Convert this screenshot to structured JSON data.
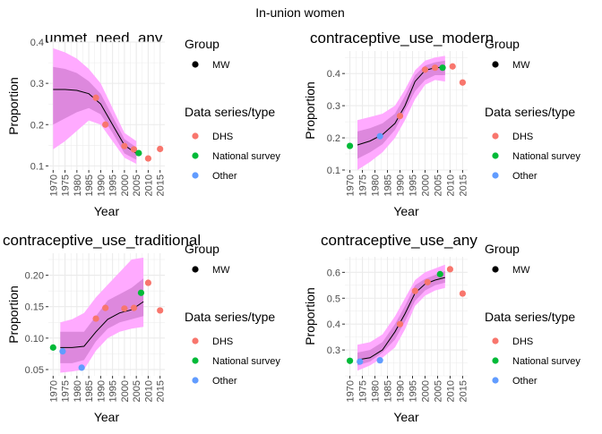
{
  "page_title": "In-union women",
  "colors": {
    "panel_bg": "#ffffff",
    "grid": "#ebebeb",
    "outer_band": "#ffaaff",
    "inner_band": "#dd88dd",
    "median_line": "#000000",
    "dhs": "#f8766d",
    "national_survey": "#00ba38",
    "other": "#619cff",
    "group_mw": "#000000"
  },
  "chart_data": [
    {
      "type": "line",
      "title": "unmet_need_any",
      "xlabel": "Year",
      "ylabel": "Proportion",
      "xlim": [
        1968,
        2017
      ],
      "ylim": [
        0.09,
        0.4
      ],
      "x_ticks": [
        1970,
        1975,
        1980,
        1985,
        1990,
        1995,
        2000,
        2005,
        2010,
        2015
      ],
      "y_ticks": [
        0.1,
        0.2,
        0.3,
        0.4
      ],
      "y_tick_labels": [
        "0.1",
        "0.2",
        "0.3",
        "0.4"
      ],
      "grid": true,
      "legend": {
        "group_title": "Group",
        "group_items": [
          "MW"
        ],
        "series_title": "Data series/type",
        "series_items": [
          "DHS",
          "National survey",
          "Other"
        ]
      },
      "band": {
        "x": [
          1970,
          1975,
          1980,
          1985,
          1990,
          1995,
          2000,
          2005
        ],
        "lower95": [
          0.14,
          0.16,
          0.185,
          0.21,
          0.2,
          0.16,
          0.12,
          0.105
        ],
        "lower80": [
          0.2,
          0.215,
          0.23,
          0.24,
          0.225,
          0.18,
          0.13,
          0.115
        ],
        "median": [
          0.285,
          0.285,
          0.283,
          0.275,
          0.25,
          0.2,
          0.15,
          0.13
        ],
        "upper80": [
          0.34,
          0.335,
          0.325,
          0.305,
          0.275,
          0.22,
          0.165,
          0.145
        ],
        "upper95": [
          0.385,
          0.375,
          0.36,
          0.335,
          0.3,
          0.24,
          0.18,
          0.16
        ]
      },
      "points": [
        {
          "series": "DHS",
          "x": 1988,
          "y": 0.265
        },
        {
          "series": "DHS",
          "x": 1992,
          "y": 0.2
        },
        {
          "series": "DHS",
          "x": 2000,
          "y": 0.148
        },
        {
          "series": "DHS",
          "x": 2004,
          "y": 0.14
        },
        {
          "series": "National survey",
          "x": 2006,
          "y": 0.131
        },
        {
          "series": "DHS",
          "x": 2010,
          "y": 0.118
        },
        {
          "series": "DHS",
          "x": 2015,
          "y": 0.141
        }
      ]
    },
    {
      "type": "line",
      "title": "contraceptive_use_modern",
      "xlabel": "Year",
      "ylabel": "Proportion",
      "xlim": [
        1968,
        2017
      ],
      "ylim": [
        0.1,
        0.47
      ],
      "x_ticks": [
        1970,
        1975,
        1980,
        1985,
        1990,
        1995,
        2000,
        2005,
        2010,
        2015
      ],
      "y_ticks": [
        0.1,
        0.2,
        0.3,
        0.4
      ],
      "y_tick_labels": [
        "0.1",
        "0.2",
        "0.3",
        "0.4"
      ],
      "grid": true,
      "legend": {
        "group_title": "Group",
        "group_items": [
          "MW"
        ],
        "series_title": "Data series/type",
        "series_items": [
          "DHS",
          "National survey",
          "Other"
        ]
      },
      "band": {
        "x": [
          1973,
          1978,
          1983,
          1988,
          1992,
          1996,
          2000,
          2004,
          2008
        ],
        "lower95": [
          0.1,
          0.125,
          0.155,
          0.2,
          0.255,
          0.32,
          0.365,
          0.38,
          0.375
        ],
        "lower80": [
          0.135,
          0.155,
          0.18,
          0.225,
          0.285,
          0.345,
          0.38,
          0.395,
          0.395
        ],
        "median": [
          0.178,
          0.19,
          0.21,
          0.245,
          0.3,
          0.375,
          0.41,
          0.418,
          0.42
        ],
        "upper80": [
          0.22,
          0.23,
          0.245,
          0.275,
          0.33,
          0.395,
          0.425,
          0.435,
          0.44
        ],
        "upper95": [
          0.255,
          0.265,
          0.275,
          0.3,
          0.35,
          0.41,
          0.44,
          0.45,
          0.455
        ]
      },
      "points": [
        {
          "series": "National survey",
          "x": 1970,
          "y": 0.175
        },
        {
          "series": "Other",
          "x": 1982,
          "y": 0.205
        },
        {
          "series": "DHS",
          "x": 1990,
          "y": 0.268
        },
        {
          "series": "DHS",
          "x": 2000,
          "y": 0.412
        },
        {
          "series": "DHS",
          "x": 2004,
          "y": 0.418
        },
        {
          "series": "National survey",
          "x": 2007,
          "y": 0.418
        },
        {
          "series": "DHS",
          "x": 2011,
          "y": 0.422
        },
        {
          "series": "DHS",
          "x": 2015,
          "y": 0.372
        }
      ]
    },
    {
      "type": "line",
      "title": "contraceptive_use_traditional",
      "xlabel": "Year",
      "ylabel": "Proportion",
      "xlim": [
        1968,
        2017
      ],
      "ylim": [
        0.04,
        0.235
      ],
      "x_ticks": [
        1970,
        1975,
        1980,
        1985,
        1990,
        1995,
        2000,
        2005,
        2010,
        2015
      ],
      "y_ticks": [
        0.05,
        0.1,
        0.15,
        0.2
      ],
      "y_tick_labels": [
        "0.05",
        "0.10",
        "0.15",
        "0.20"
      ],
      "grid": true,
      "legend": {
        "group_title": "Group",
        "group_items": [
          "MW"
        ],
        "series_title": "Data series/type",
        "series_items": [
          "DHS",
          "National survey",
          "Other"
        ]
      },
      "band": {
        "x": [
          1973,
          1978,
          1983,
          1988,
          1993,
          1998,
          2003,
          2008
        ],
        "lower95": [
          0.045,
          0.047,
          0.05,
          0.08,
          0.1,
          0.11,
          0.115,
          0.118
        ],
        "lower80": [
          0.06,
          0.06,
          0.065,
          0.095,
          0.115,
          0.125,
          0.13,
          0.135
        ],
        "median": [
          0.085,
          0.085,
          0.087,
          0.11,
          0.13,
          0.14,
          0.145,
          0.158
        ],
        "upper80": [
          0.11,
          0.11,
          0.11,
          0.135,
          0.16,
          0.17,
          0.18,
          0.195
        ],
        "upper95": [
          0.125,
          0.13,
          0.14,
          0.165,
          0.185,
          0.205,
          0.225,
          0.228
        ]
      },
      "points": [
        {
          "series": "National survey",
          "x": 1970,
          "y": 0.085
        },
        {
          "series": "Other",
          "x": 1974,
          "y": 0.079
        },
        {
          "series": "Other",
          "x": 1982,
          "y": 0.053
        },
        {
          "series": "DHS",
          "x": 1988,
          "y": 0.131
        },
        {
          "series": "DHS",
          "x": 1992,
          "y": 0.148
        },
        {
          "series": "DHS",
          "x": 2000,
          "y": 0.147
        },
        {
          "series": "DHS",
          "x": 2004,
          "y": 0.148
        },
        {
          "series": "National survey",
          "x": 2007,
          "y": 0.172
        },
        {
          "series": "DHS",
          "x": 2010,
          "y": 0.188
        },
        {
          "series": "DHS",
          "x": 2015,
          "y": 0.144
        }
      ]
    },
    {
      "type": "line",
      "title": "contraceptive_use_any",
      "xlabel": "Year",
      "ylabel": "Proportion",
      "xlim": [
        1968,
        2017
      ],
      "ylim": [
        0.2,
        0.66
      ],
      "x_ticks": [
        1970,
        1975,
        1980,
        1985,
        1990,
        1995,
        2000,
        2005,
        2010,
        2015
      ],
      "y_ticks": [
        0.3,
        0.4,
        0.5,
        0.6
      ],
      "y_tick_labels": [
        "0.3",
        "0.4",
        "0.5",
        "0.6"
      ],
      "grid": true,
      "legend": {
        "group_title": "Group",
        "group_items": [
          "MW"
        ],
        "series_title": "Data series/type",
        "series_items": [
          "DHS",
          "National survey",
          "Other"
        ]
      },
      "band": {
        "x": [
          1973,
          1978,
          1983,
          1988,
          1992,
          1996,
          2000,
          2004,
          2008
        ],
        "lower95": [
          0.22,
          0.24,
          0.27,
          0.31,
          0.38,
          0.47,
          0.51,
          0.53,
          0.54
        ],
        "lower80": [
          0.24,
          0.255,
          0.29,
          0.34,
          0.41,
          0.49,
          0.53,
          0.55,
          0.56
        ],
        "median": [
          0.262,
          0.27,
          0.3,
          0.37,
          0.44,
          0.52,
          0.555,
          0.57,
          0.58
        ],
        "upper80": [
          0.29,
          0.3,
          0.33,
          0.4,
          0.47,
          0.55,
          0.575,
          0.59,
          0.605
        ],
        "upper95": [
          0.32,
          0.33,
          0.36,
          0.43,
          0.5,
          0.57,
          0.6,
          0.615,
          0.63
        ]
      },
      "points": [
        {
          "series": "National survey",
          "x": 1970,
          "y": 0.258
        },
        {
          "series": "Other",
          "x": 1974,
          "y": 0.255
        },
        {
          "series": "Other",
          "x": 1982,
          "y": 0.26
        },
        {
          "series": "DHS",
          "x": 1990,
          "y": 0.4
        },
        {
          "series": "DHS",
          "x": 1996,
          "y": 0.528
        },
        {
          "series": "DHS",
          "x": 2001,
          "y": 0.562
        },
        {
          "series": "National survey",
          "x": 2006,
          "y": 0.593
        },
        {
          "series": "DHS",
          "x": 2010,
          "y": 0.612
        },
        {
          "series": "DHS",
          "x": 2015,
          "y": 0.518
        }
      ]
    }
  ]
}
